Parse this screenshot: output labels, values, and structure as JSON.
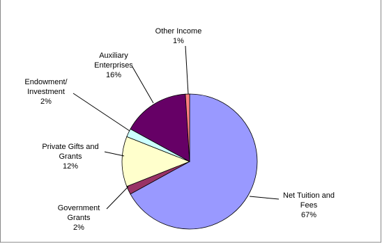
{
  "chart_data": {
    "type": "pie",
    "categories": [
      "Net Tuition and Fees",
      "Government Grants",
      "Private Gifts and Grants",
      "Endowment/ Investment",
      "Auxiliary Enterprises",
      "Other Income"
    ],
    "values": [
      67,
      2,
      12,
      2,
      16,
      1
    ],
    "value_labels": [
      "67%",
      "2%",
      "12%",
      "2%",
      "16%",
      "1%"
    ],
    "colors": [
      "#9999ff",
      "#993366",
      "#ffffcc",
      "#ccffff",
      "#660066",
      "#ff8080"
    ]
  }
}
